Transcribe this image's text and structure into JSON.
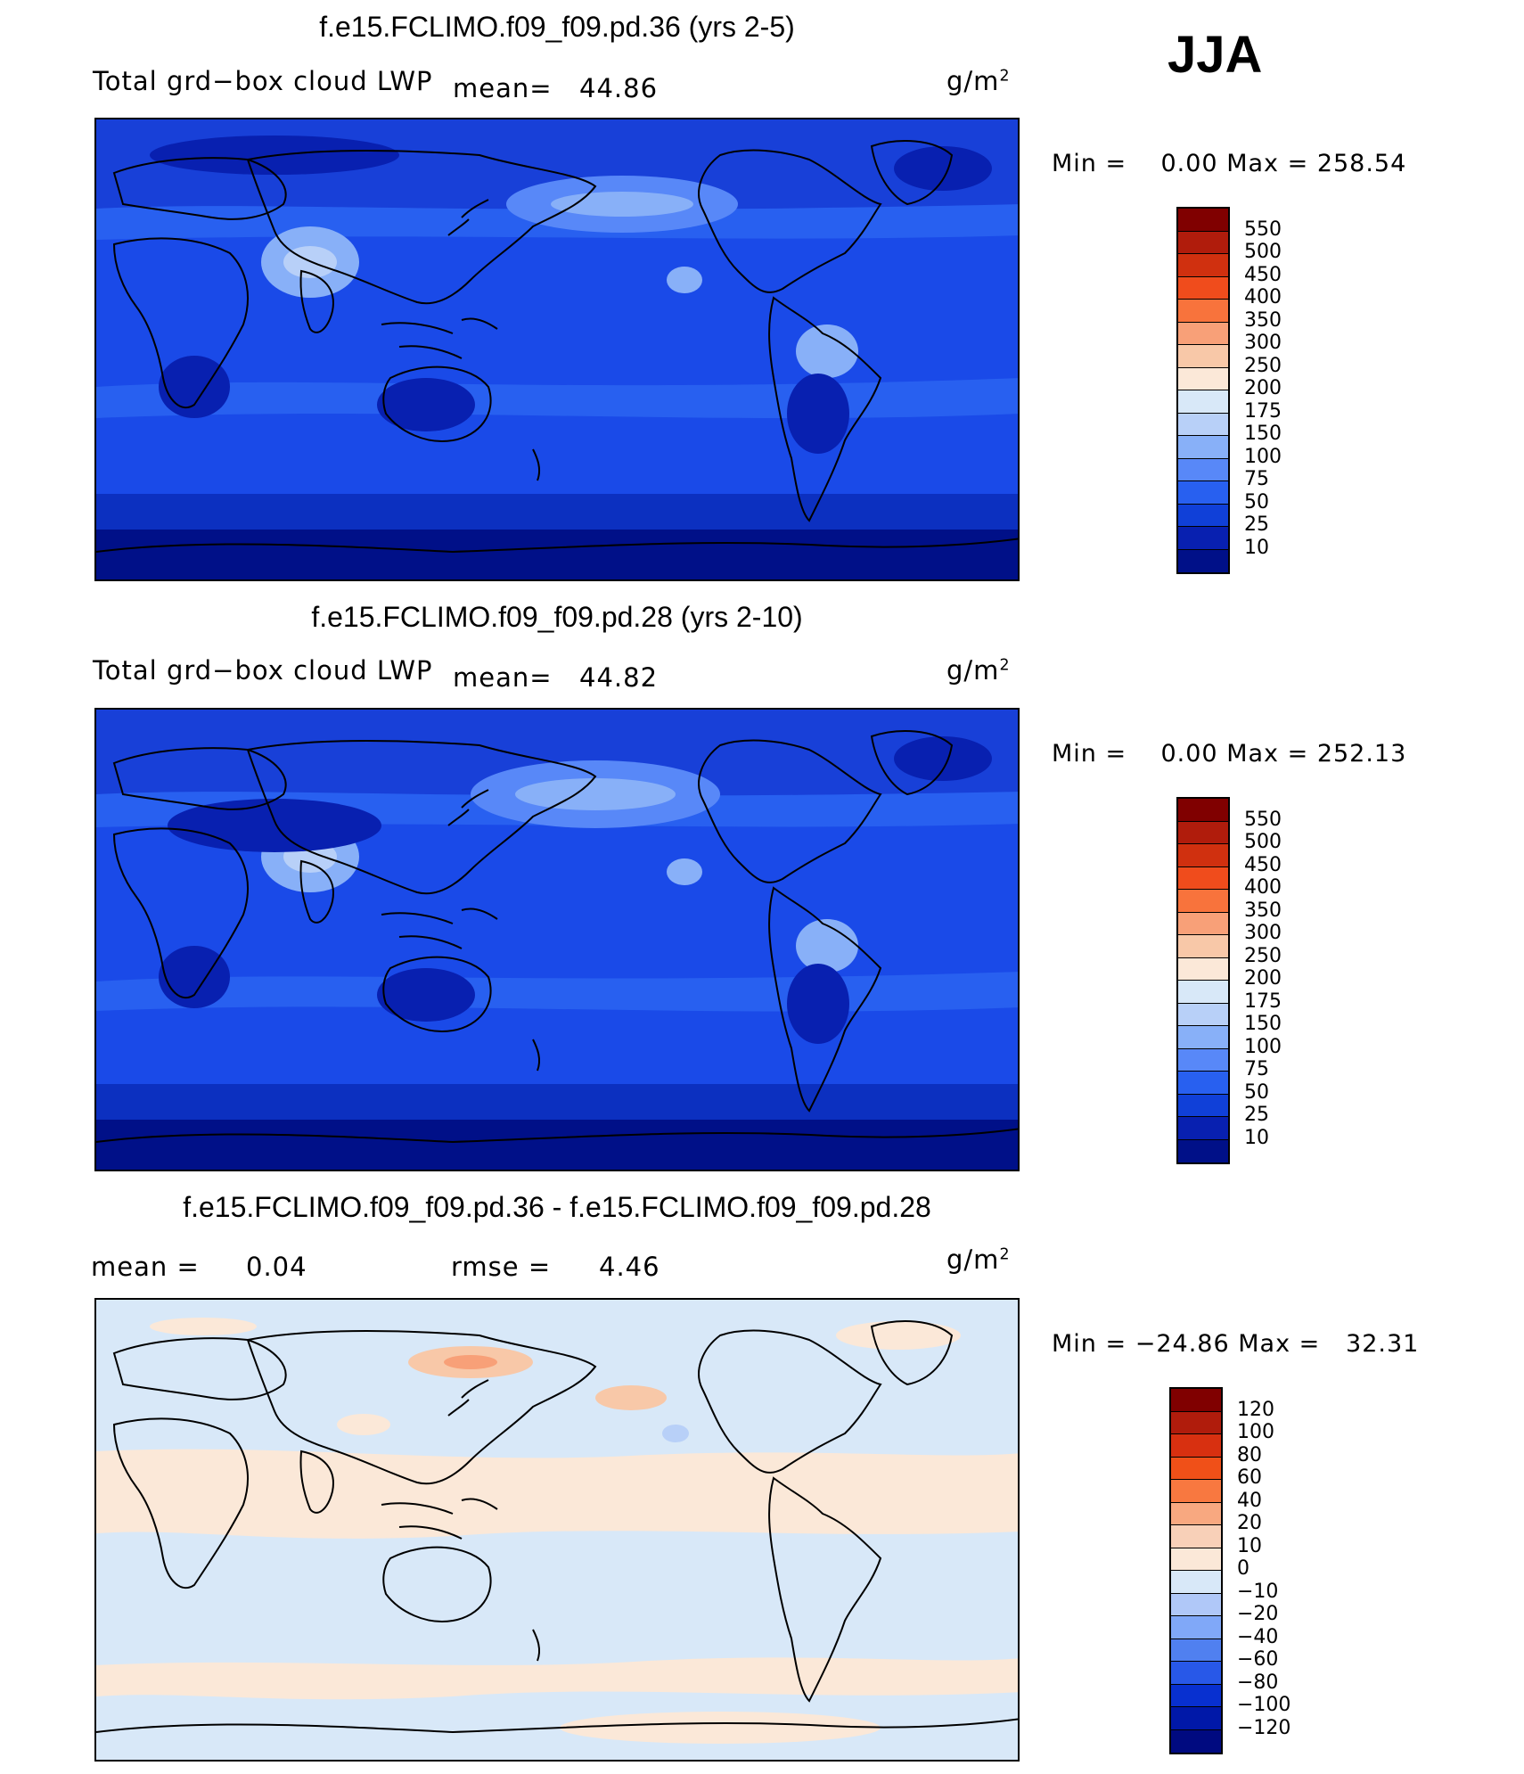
{
  "season": "JJA",
  "panels": [
    {
      "title": "f.e15.FCLIMO.f09_f09.pd.36 (yrs 2-5)",
      "variable": "Total grd−box cloud LWP",
      "mean_label": "mean=",
      "mean_value": "44.86",
      "units_base": "g/m",
      "units_exp": "2",
      "min_label": "Min  =",
      "min_value": "0.00",
      "max_label": "Max  =",
      "max_value": "258.54",
      "colorbar": [
        "550",
        "500",
        "450",
        "400",
        "350",
        "300",
        "250",
        "200",
        "175",
        "150",
        "100",
        "75",
        "50",
        "25",
        "10"
      ]
    },
    {
      "title": "f.e15.FCLIMO.f09_f09.pd.28 (yrs 2-10)",
      "variable": "Total grd−box cloud LWP",
      "mean_label": "mean=",
      "mean_value": "44.82",
      "units_base": "g/m",
      "units_exp": "2",
      "min_label": "Min  =",
      "min_value": "0.00",
      "max_label": "Max  =",
      "max_value": "252.13",
      "colorbar": [
        "550",
        "500",
        "450",
        "400",
        "350",
        "300",
        "250",
        "200",
        "175",
        "150",
        "100",
        "75",
        "50",
        "25",
        "10"
      ]
    },
    {
      "title": "f.e15.FCLIMO.f09_f09.pd.36 - f.e15.FCLIMO.f09_f09.pd.28",
      "mean_label": "mean  =",
      "mean_value": "0.04",
      "rmse_label": "rmse  =",
      "rmse_value": "4.46",
      "units_base": "g/m",
      "units_exp": "2",
      "min_label": "Min  =",
      "min_value": "−24.86",
      "max_label": "Max  =",
      "max_value": "32.31",
      "colorbar": [
        "120",
        "100",
        "80",
        "60",
        "40",
        "20",
        "10",
        "0",
        "−10",
        "−20",
        "−40",
        "−60",
        "−80",
        "−100",
        "−120"
      ]
    }
  ],
  "colors": {
    "abs_scale": [
      "#800000",
      "#b01c0c",
      "#d0300f",
      "#f04c1c",
      "#f8733c",
      "#f8a078",
      "#f8c8a8",
      "#fbe8d8",
      "#d8e8f8",
      "#b8d0f8",
      "#88b0f8",
      "#5888f8",
      "#2860f0",
      "#1040d8",
      "#0820b0",
      "#001088"
    ],
    "diff_scale": [
      "#800000",
      "#b01c0c",
      "#d83010",
      "#f05018",
      "#f87840",
      "#f8a880",
      "#f8d0b8",
      "#fbe8d8",
      "#d8e8f8",
      "#b0c8f8",
      "#80a8f8",
      "#5080f0",
      "#2858e8",
      "#0830d0",
      "#0018a8",
      "#000a80"
    ]
  }
}
